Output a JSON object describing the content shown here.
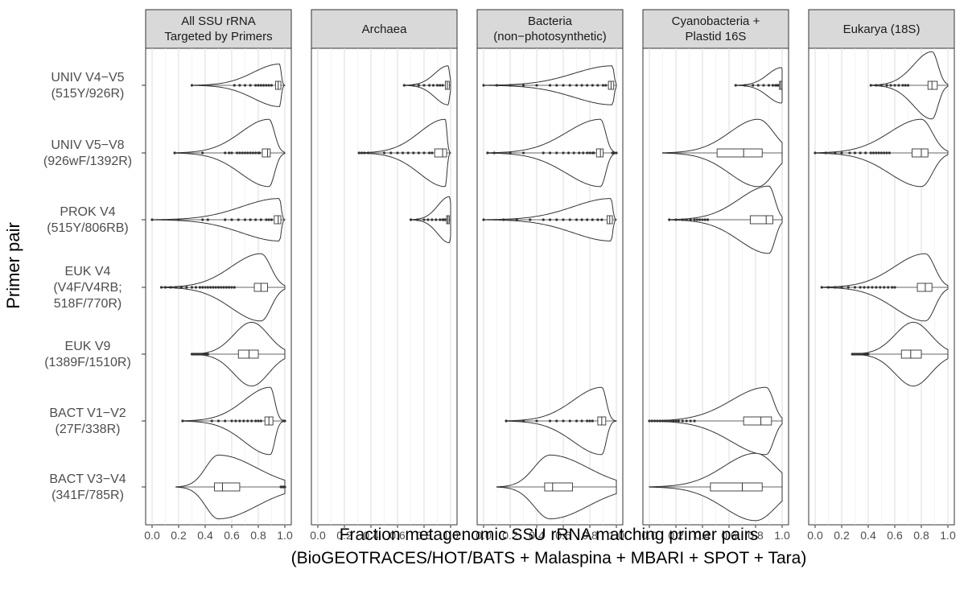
{
  "chart_data": {
    "type": "violin",
    "xlabel": "Fraction metagenomic SSU rRNA matching primer pairs",
    "xlabel_sub": "(BioGEOTRACES/HOT/BATS + Malaspina + MBARI + SPOT + Tara)",
    "ylabel": "Primer pair",
    "xlim": [
      0,
      1
    ],
    "x_ticks": [
      "0.0",
      "0.2",
      "0.4",
      "0.6",
      "0.8",
      "1.0"
    ],
    "x_tick_values": [
      0,
      0.2,
      0.4,
      0.6,
      0.8,
      1.0
    ],
    "facets": [
      {
        "id": "all",
        "title_lines": [
          "All SSU rRNA",
          "Targeted by Primers"
        ]
      },
      {
        "id": "archaea",
        "title_lines": [
          "Archaea"
        ]
      },
      {
        "id": "bacteria",
        "title_lines": [
          "Bacteria",
          "(non−photosynthetic)"
        ]
      },
      {
        "id": "cyano",
        "title_lines": [
          "Cyanobacteria +",
          "Plastid 16S"
        ]
      },
      {
        "id": "euk",
        "title_lines": [
          "Eukarya (18S)"
        ]
      }
    ],
    "primer_pairs": [
      {
        "id": "univ_v4v5",
        "label_lines": [
          "UNIV   V4−V5",
          "(515Y/926R)"
        ]
      },
      {
        "id": "univ_v5v8",
        "label_lines": [
          "UNIV V5−V8",
          "(926wF/1392R)"
        ]
      },
      {
        "id": "prok_v4",
        "label_lines": [
          "PROK V4",
          "(515Y/806RB)"
        ]
      },
      {
        "id": "euk_v4",
        "label_lines": [
          "EUK   V4",
          "(V4F/V4RB;",
          "518F/770R)"
        ]
      },
      {
        "id": "euk_v9",
        "label_lines": [
          "EUK V9",
          "(1389F/1510R)"
        ]
      },
      {
        "id": "bact_v1v2",
        "label_lines": [
          "BACT   V1−V2",
          "(27F/338R)"
        ]
      },
      {
        "id": "bact_v3v4",
        "label_lines": [
          "BACT V3−V4",
          "(341F/785R)"
        ]
      }
    ],
    "violins": [
      {
        "facet": "all",
        "row": 0,
        "min": 0.3,
        "max": 1.0,
        "q1": 0.93,
        "median": 0.95,
        "q3": 0.97,
        "mode": 0.96,
        "width": 0.6,
        "skew": 1.6,
        "outliers": [
          0.3,
          0.62,
          0.66,
          0.7,
          0.74,
          0.78,
          0.8,
          0.82,
          0.84,
          0.86,
          0.88,
          0.9
        ]
      },
      {
        "facet": "all",
        "row": 1,
        "min": 0.17,
        "max": 1.0,
        "q1": 0.83,
        "median": 0.87,
        "q3": 0.89,
        "mode": 0.88,
        "width": 0.95,
        "skew": 1.3,
        "outliers": [
          0.17,
          0.38,
          0.55,
          0.58,
          0.6,
          0.64,
          0.66,
          0.68,
          0.7,
          0.72,
          0.74,
          0.76,
          0.78,
          0.8,
          0.81
        ]
      },
      {
        "facet": "all",
        "row": 2,
        "min": 0.0,
        "max": 1.0,
        "q1": 0.92,
        "median": 0.95,
        "q3": 0.97,
        "mode": 0.96,
        "width": 0.6,
        "skew": 1.6,
        "outliers": [
          0.0,
          0.2,
          0.38,
          0.42,
          0.55,
          0.6,
          0.65,
          0.7,
          0.74,
          0.78,
          0.82,
          0.86,
          0.88,
          0.9
        ]
      },
      {
        "facet": "all",
        "row": 3,
        "min": 0.07,
        "max": 1.0,
        "q1": 0.77,
        "median": 0.82,
        "q3": 0.87,
        "mode": 0.82,
        "width": 0.95,
        "skew": 1.1,
        "outliers": [
          0.07,
          0.1,
          0.14,
          0.18,
          0.22,
          0.26,
          0.3,
          0.33,
          0.36,
          0.38,
          0.4,
          0.42,
          0.44,
          0.46,
          0.48,
          0.5,
          0.52,
          0.54,
          0.56,
          0.58,
          0.6,
          0.62
        ]
      },
      {
        "facet": "all",
        "row": 4,
        "min": 0.3,
        "max": 1.0,
        "q1": 0.65,
        "median": 0.73,
        "q3": 0.8,
        "mode": 0.75,
        "width": 0.9,
        "skew": 0.9,
        "outliers": [
          0.3,
          0.31,
          0.32,
          0.33,
          0.34,
          0.35,
          0.36,
          0.37,
          0.38,
          0.39,
          0.4,
          0.41,
          0.42
        ]
      },
      {
        "facet": "all",
        "row": 5,
        "min": 0.23,
        "max": 1.0,
        "q1": 0.85,
        "median": 0.88,
        "q3": 0.91,
        "mode": 0.89,
        "width": 0.95,
        "skew": 1.5,
        "outliers": [
          0.23,
          0.45,
          0.5,
          0.55,
          0.6,
          0.63,
          0.66,
          0.69,
          0.72,
          0.75,
          0.78,
          0.8,
          0.82,
          0.99,
          1.0
        ]
      },
      {
        "facet": "all",
        "row": 6,
        "min": 0.18,
        "max": 1.0,
        "q1": 0.47,
        "median": 0.53,
        "q3": 0.66,
        "mode": 0.5,
        "width": 0.9,
        "skew": 0.8,
        "outliers": [
          0.97,
          0.98,
          0.99,
          1.0
        ]
      },
      {
        "facet": "archaea",
        "row": 0,
        "min": 0.65,
        "max": 1.0,
        "q1": 0.96,
        "median": 0.975,
        "q3": 0.99,
        "mode": 0.98,
        "width": 0.55,
        "skew": 2.0,
        "outliers": [
          0.65,
          0.72,
          0.76,
          0.8,
          0.84,
          0.87,
          0.9,
          0.92,
          0.94
        ]
      },
      {
        "facet": "archaea",
        "row": 1,
        "min": 0.31,
        "max": 1.0,
        "q1": 0.88,
        "median": 0.94,
        "q3": 0.97,
        "mode": 0.96,
        "width": 0.95,
        "skew": 1.5,
        "outliers": [
          0.31,
          0.33,
          0.35,
          0.38,
          0.5,
          0.55,
          0.6,
          0.64,
          0.68,
          0.72,
          0.76,
          0.8,
          0.84,
          0.86
        ]
      },
      {
        "facet": "archaea",
        "row": 2,
        "min": 0.7,
        "max": 1.0,
        "q1": 0.97,
        "median": 0.98,
        "q3": 0.99,
        "mode": 0.99,
        "width": 0.65,
        "skew": 2.5,
        "outliers": [
          0.7,
          0.75,
          0.8,
          0.83,
          0.86,
          0.89,
          0.92,
          0.94,
          0.95,
          0.96
        ]
      },
      {
        "facet": "bacteria",
        "row": 0,
        "min": 0.0,
        "max": 1.0,
        "q1": 0.94,
        "median": 0.96,
        "q3": 0.98,
        "mode": 0.97,
        "width": 0.55,
        "skew": 1.8,
        "outliers": [
          0.0,
          0.1,
          0.2,
          0.3,
          0.4,
          0.5,
          0.55,
          0.6,
          0.65,
          0.7,
          0.74,
          0.78,
          0.82,
          0.86,
          0.9,
          0.92
        ]
      },
      {
        "facet": "bacteria",
        "row": 1,
        "min": 0.03,
        "max": 1.0,
        "q1": 0.85,
        "median": 0.88,
        "q3": 0.9,
        "mode": 0.88,
        "width": 0.95,
        "skew": 1.4,
        "outliers": [
          0.03,
          0.08,
          0.2,
          0.3,
          0.45,
          0.5,
          0.55,
          0.6,
          0.64,
          0.68,
          0.72,
          0.75,
          0.78,
          0.8,
          0.82,
          0.83,
          0.97,
          0.98,
          1.0
        ]
      },
      {
        "facet": "bacteria",
        "row": 2,
        "min": 0.0,
        "max": 1.0,
        "q1": 0.93,
        "median": 0.95,
        "q3": 0.97,
        "mode": 0.96,
        "width": 0.6,
        "skew": 1.6,
        "outliers": [
          0.0,
          0.15,
          0.25,
          0.35,
          0.45,
          0.5,
          0.55,
          0.6,
          0.65,
          0.7,
          0.74,
          0.78,
          0.82,
          0.86,
          0.89
        ]
      },
      {
        "facet": "bacteria",
        "row": 5,
        "min": 0.17,
        "max": 1.0,
        "q1": 0.86,
        "median": 0.89,
        "q3": 0.92,
        "mode": 0.89,
        "width": 0.95,
        "skew": 1.5,
        "outliers": [
          0.17,
          0.3,
          0.4,
          0.5,
          0.55,
          0.6,
          0.65,
          0.7,
          0.74,
          0.78,
          0.8,
          0.82
        ]
      },
      {
        "facet": "bacteria",
        "row": 6,
        "min": 0.1,
        "max": 1.0,
        "q1": 0.46,
        "median": 0.52,
        "q3": 0.67,
        "mode": 0.5,
        "width": 0.9,
        "skew": 0.8,
        "outliers": []
      },
      {
        "facet": "cyano",
        "row": 0,
        "min": 0.65,
        "max": 1.0,
        "q1": 0.98,
        "median": 0.99,
        "q3": 1.0,
        "mode": 0.995,
        "width": 0.5,
        "skew": 2.5,
        "outliers": [
          0.65,
          0.72,
          0.78,
          0.82,
          0.86,
          0.9,
          0.93,
          0.95,
          0.96,
          0.97
        ]
      },
      {
        "facet": "cyano",
        "row": 1,
        "min": 0.1,
        "max": 1.0,
        "q1": 0.51,
        "median": 0.71,
        "q3": 0.85,
        "mode": 0.82,
        "width": 0.95,
        "skew": 0.7,
        "outliers": []
      },
      {
        "facet": "cyano",
        "row": 2,
        "min": 0.15,
        "max": 1.0,
        "q1": 0.76,
        "median": 0.88,
        "q3": 0.93,
        "mode": 0.9,
        "width": 0.95,
        "skew": 1.0,
        "outliers": [
          0.15,
          0.2,
          0.25,
          0.28,
          0.31,
          0.34,
          0.36,
          0.38,
          0.4,
          0.42,
          0.44
        ]
      },
      {
        "facet": "cyano",
        "row": 5,
        "min": 0.0,
        "max": 1.0,
        "q1": 0.71,
        "median": 0.84,
        "q3": 0.92,
        "mode": 0.88,
        "width": 0.95,
        "skew": 1.0,
        "outliers": [
          0.0,
          0.02,
          0.04,
          0.06,
          0.08,
          0.1,
          0.12,
          0.14,
          0.16,
          0.18,
          0.2,
          0.22,
          0.25,
          0.28,
          0.31,
          0.34
        ]
      },
      {
        "facet": "cyano",
        "row": 6,
        "min": 0.0,
        "max": 1.0,
        "q1": 0.46,
        "median": 0.7,
        "q3": 0.85,
        "mode": 0.8,
        "width": 0.95,
        "skew": 0.6,
        "outliers": []
      },
      {
        "facet": "euk",
        "row": 0,
        "min": 0.42,
        "max": 1.0,
        "q1": 0.85,
        "median": 0.88,
        "q3": 0.92,
        "mode": 0.88,
        "width": 0.95,
        "skew": 1.2,
        "outliers": [
          0.42,
          0.46,
          0.5,
          0.54,
          0.57,
          0.6,
          0.63,
          0.66,
          0.68,
          0.7
        ]
      },
      {
        "facet": "euk",
        "row": 1,
        "min": 0.0,
        "max": 1.0,
        "q1": 0.73,
        "median": 0.8,
        "q3": 0.85,
        "mode": 0.8,
        "width": 0.95,
        "skew": 1.1,
        "outliers": [
          0.0,
          0.08,
          0.15,
          0.2,
          0.26,
          0.3,
          0.34,
          0.38,
          0.42,
          0.44,
          0.46,
          0.48,
          0.5,
          0.52,
          0.54,
          0.56
        ]
      },
      {
        "facet": "euk",
        "row": 3,
        "min": 0.05,
        "max": 1.0,
        "q1": 0.77,
        "median": 0.83,
        "q3": 0.88,
        "mode": 0.83,
        "width": 0.95,
        "skew": 1.1,
        "outliers": [
          0.05,
          0.1,
          0.15,
          0.2,
          0.25,
          0.3,
          0.34,
          0.37,
          0.4,
          0.43,
          0.46,
          0.49,
          0.52,
          0.55,
          0.58,
          0.6
        ]
      },
      {
        "facet": "euk",
        "row": 4,
        "min": 0.28,
        "max": 1.0,
        "q1": 0.65,
        "median": 0.72,
        "q3": 0.8,
        "mode": 0.74,
        "width": 0.9,
        "skew": 0.9,
        "outliers": [
          0.28,
          0.29,
          0.3,
          0.31,
          0.32,
          0.33,
          0.34,
          0.35,
          0.36,
          0.37,
          0.38,
          0.39,
          0.4
        ]
      }
    ]
  }
}
